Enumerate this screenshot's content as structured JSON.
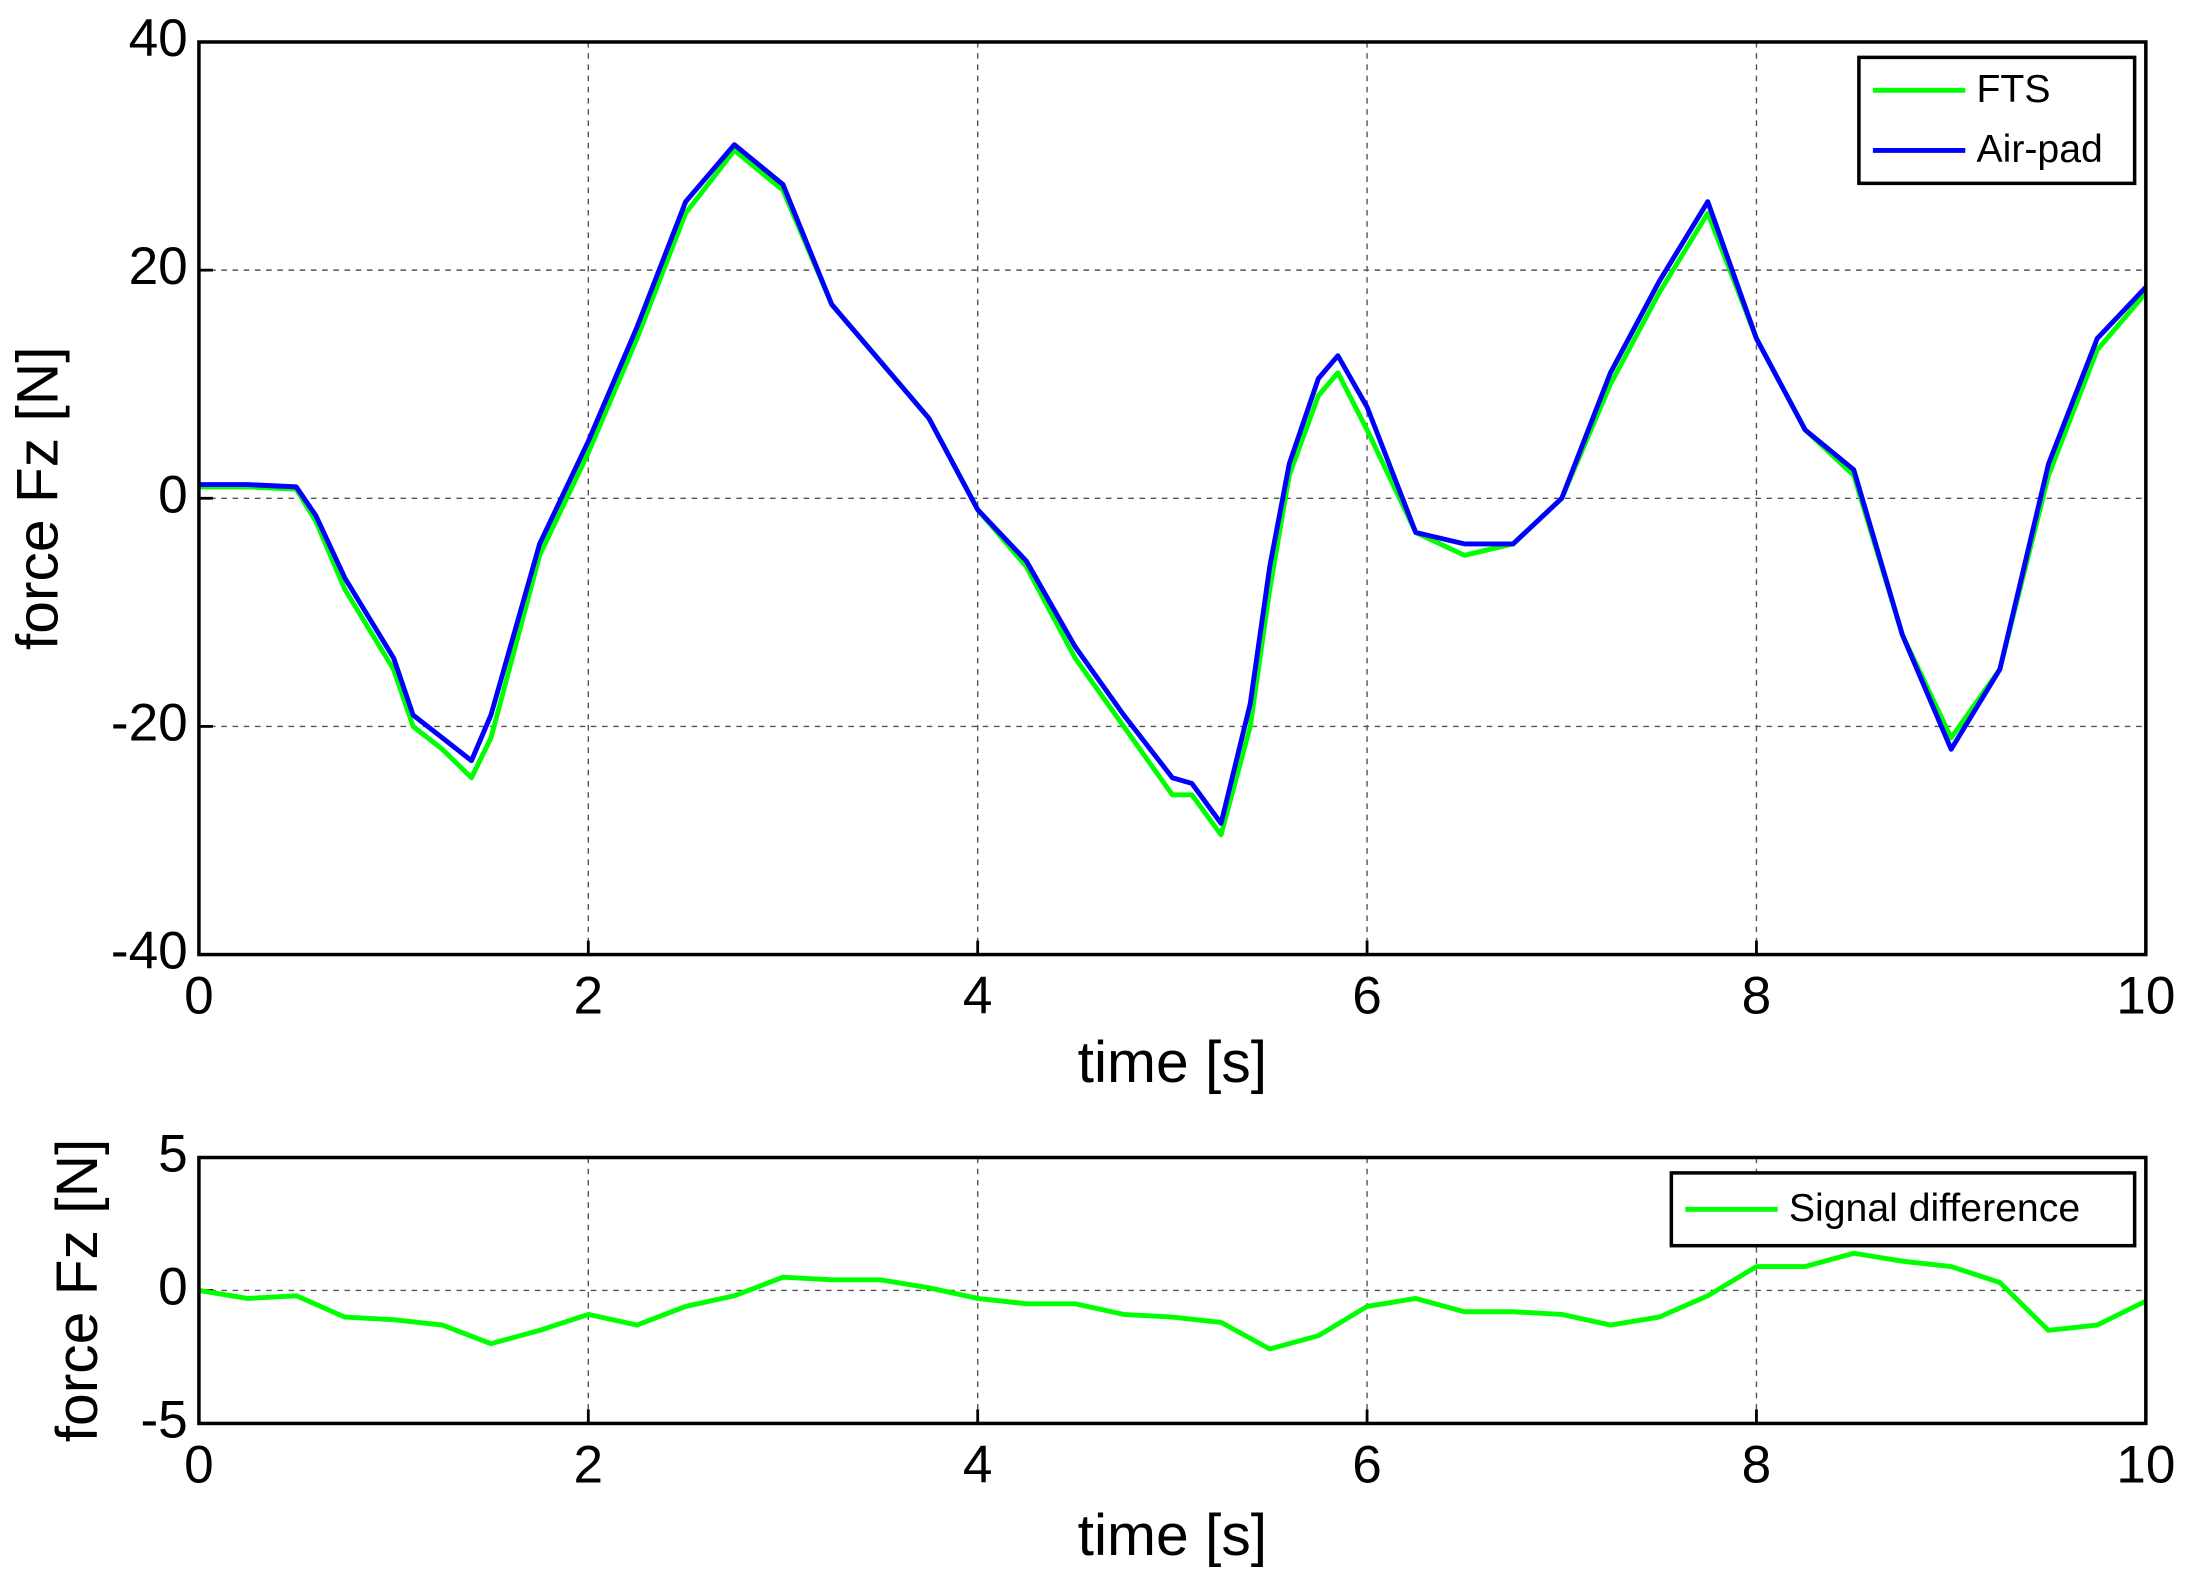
{
  "chart_data": [
    {
      "type": "line",
      "xlabel": "time [s]",
      "ylabel": "force Fz [N]",
      "x": [
        0,
        0.25,
        0.5,
        0.6,
        0.75,
        1.0,
        1.1,
        1.25,
        1.4,
        1.5,
        1.75,
        2.0,
        2.25,
        2.5,
        2.75,
        3.0,
        3.25,
        3.5,
        3.75,
        4.0,
        4.25,
        4.5,
        4.75,
        5.0,
        5.1,
        5.25,
        5.4,
        5.5,
        5.6,
        5.75,
        5.85,
        6.0,
        6.25,
        6.5,
        6.75,
        7.0,
        7.25,
        7.5,
        7.75,
        8.0,
        8.25,
        8.5,
        8.75,
        9.0,
        9.25,
        9.5,
        9.75,
        10
      ],
      "series": [
        {
          "name": "FTS",
          "color": "#00ff00",
          "values": [
            1,
            1,
            0.8,
            -2,
            -8,
            -15,
            -20,
            -22,
            -24.5,
            -21,
            -5,
            4,
            14,
            25,
            30.5,
            27,
            17,
            12,
            7,
            -1,
            -6,
            -14,
            -20,
            -26,
            -26,
            -29.5,
            -20,
            -8,
            2,
            9,
            11,
            6,
            -3,
            -5,
            -4,
            0,
            10,
            18,
            25,
            14,
            6,
            2,
            -12,
            -21,
            -15,
            2,
            13,
            18
          ]
        },
        {
          "name": "Air-pad",
          "color": "#0000ff",
          "values": [
            1.2,
            1.2,
            1,
            -1.5,
            -7,
            -14,
            -19,
            -21,
            -23,
            -19,
            -4,
            5,
            15,
            26,
            31,
            27.5,
            17,
            12,
            7,
            -1,
            -5.5,
            -13,
            -19,
            -24.5,
            -25,
            -28.5,
            -18,
            -6,
            3,
            10.5,
            12.5,
            8,
            -3,
            -4,
            -4,
            0,
            11,
            19,
            26,
            14,
            6,
            2.5,
            -12,
            -22,
            -15,
            3,
            14,
            18.5
          ]
        }
      ],
      "xlim": [
        0,
        10
      ],
      "xticks": [
        0,
        2,
        4,
        6,
        8,
        10
      ],
      "ylim": [
        -40,
        40
      ],
      "yticks": [
        -40,
        -20,
        0,
        20,
        40
      ],
      "grid": true,
      "legend": "upper right"
    },
    {
      "type": "line",
      "xlabel": "time [s]",
      "ylabel": "force Fz [N]",
      "x": [
        0,
        0.25,
        0.5,
        0.75,
        1.0,
        1.25,
        1.5,
        1.75,
        2.0,
        2.25,
        2.5,
        2.75,
        3.0,
        3.25,
        3.5,
        3.75,
        4.0,
        4.25,
        4.5,
        4.75,
        5.0,
        5.25,
        5.5,
        5.75,
        6.0,
        6.25,
        6.5,
        6.75,
        7.0,
        7.25,
        7.5,
        7.75,
        8.0,
        8.25,
        8.5,
        8.75,
        9.0,
        9.25,
        9.5,
        9.75,
        10
      ],
      "series": [
        {
          "name": "Signal difference",
          "color": "#00ff00",
          "values": [
            0,
            -0.3,
            -0.2,
            -1,
            -1.1,
            -1.3,
            -2,
            -1.5,
            -0.9,
            -1.3,
            -0.6,
            -0.2,
            0.5,
            0.4,
            0.4,
            0.1,
            -0.3,
            -0.5,
            -0.5,
            -0.9,
            -1,
            -1.2,
            -2.2,
            -1.7,
            -0.6,
            -0.3,
            -0.8,
            -0.8,
            -0.9,
            -1.3,
            -1,
            -0.2,
            0.9,
            0.9,
            1.4,
            1.1,
            0.9,
            0.3,
            -1.5,
            -1.3,
            -0.4
          ]
        }
      ],
      "xlim": [
        0,
        10
      ],
      "xticks": [
        0,
        2,
        4,
        6,
        8,
        10
      ],
      "ylim": [
        -5,
        5
      ],
      "yticks": [
        -5,
        0,
        5
      ],
      "grid": true,
      "legend": "upper right"
    }
  ]
}
